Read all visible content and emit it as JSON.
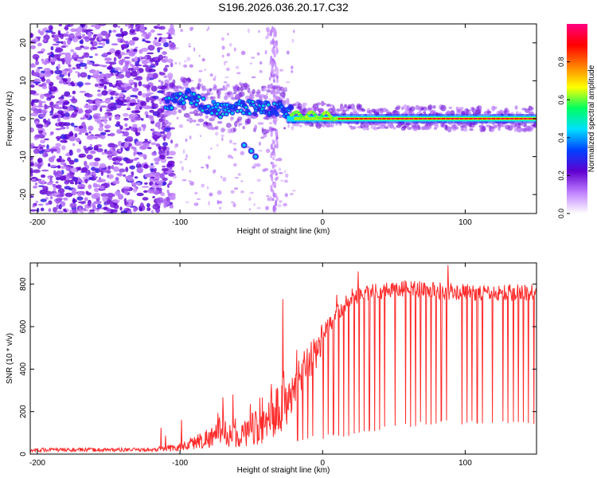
{
  "figure_title": "S196.2026.036.20.17.C32",
  "chart_data": [
    {
      "type": "heatmap",
      "title": "S196.2026.036.20.17.C32",
      "xlabel": "Height of straight line (km)",
      "ylabel": "Frequency (Hz)",
      "xlim": [
        -205,
        150
      ],
      "ylim": [
        -25,
        25
      ],
      "xticks": [
        -200,
        -100,
        0,
        100
      ],
      "xtick_labels": [
        "-200",
        "-100",
        "0",
        "100"
      ],
      "yticks": [
        20,
        10,
        0,
        -10,
        -20
      ],
      "ytick_labels": [
        "20",
        "10",
        "0",
        "-10",
        "-20"
      ],
      "colorbar": {
        "label": "Normalized spectral amplitude",
        "range": [
          0,
          1
        ],
        "ticks": [
          0.0,
          0.2,
          0.4,
          0.6,
          0.8
        ],
        "tick_labels": [
          "0.0",
          "0.2",
          "0.4",
          "0.6",
          "0.8"
        ],
        "colormap": "rainbow (violet to red)",
        "colors": [
          "#ffffff",
          "#c080ff",
          "#6000d0",
          "#0040ff",
          "#00e0ff",
          "#00ff60",
          "#ffff00",
          "#ff8000",
          "#ff0000",
          "#ff0080"
        ]
      },
      "features": {
        "noise_x_range": [
          -205,
          -105
        ],
        "noise_y_range": [
          -25,
          25
        ],
        "ridge_points": [
          [
            -110,
            4
          ],
          [
            -100,
            5
          ],
          [
            -95,
            6
          ],
          [
            -90,
            5
          ],
          [
            -80,
            3
          ],
          [
            -70,
            2
          ],
          [
            -60,
            3
          ],
          [
            -50,
            3
          ],
          [
            -40,
            2.5
          ],
          [
            -30,
            3
          ],
          [
            -20,
            1
          ],
          [
            -10,
            1
          ],
          [
            0,
            1
          ],
          [
            10,
            0.5
          ],
          [
            30,
            0.3
          ],
          [
            60,
            0.2
          ],
          [
            100,
            0
          ],
          [
            150,
            0
          ]
        ],
        "strong_band_x_range": [
          -25,
          150
        ],
        "strong_band_y": 0,
        "secondary_branch": [
          [
            -55,
            -7
          ],
          [
            -50,
            -8.5
          ],
          [
            -47,
            -10
          ]
        ],
        "vertical_streaks_x": [
          -35,
          -33
        ]
      }
    },
    {
      "type": "line",
      "xlabel": "Height of straight line (km)",
      "ylabel": "SNR (10 * v/v)",
      "xlim": [
        -205,
        150
      ],
      "ylim": [
        0,
        900
      ],
      "xticks": [
        -200,
        -100,
        0,
        100
      ],
      "xtick_labels": [
        "-200",
        "-100",
        "0",
        "100"
      ],
      "yticks": [
        0,
        200,
        400,
        600,
        800
      ],
      "ytick_labels": [
        "0",
        "200",
        "400",
        "600",
        "800"
      ],
      "series": [
        {
          "name": "SNR",
          "color": "#ff2a2a",
          "envelope_x": [
            -205,
            -120,
            -110,
            -100,
            -90,
            -80,
            -70,
            -60,
            -50,
            -40,
            -30,
            -20,
            -15,
            -10,
            -5,
            0,
            10,
            20,
            30,
            40,
            50,
            60,
            80,
            100,
            120,
            150
          ],
          "envelope_y": [
            20,
            20,
            22,
            30,
            50,
            70,
            90,
            80,
            90,
            120,
            200,
            300,
            380,
            430,
            480,
            560,
            660,
            740,
            760,
            770,
            780,
            780,
            770,
            760,
            760,
            760
          ],
          "dip_levels": [
            60,
            80,
            120,
            140,
            140,
            140
          ],
          "notable_peaks": [
            [
              -63,
              280
            ],
            [
              -47,
              200
            ],
            [
              -28,
              730
            ],
            [
              -18,
              490
            ],
            [
              10,
              750
            ],
            [
              25,
              860
            ],
            [
              88,
              890
            ]
          ]
        }
      ]
    }
  ]
}
